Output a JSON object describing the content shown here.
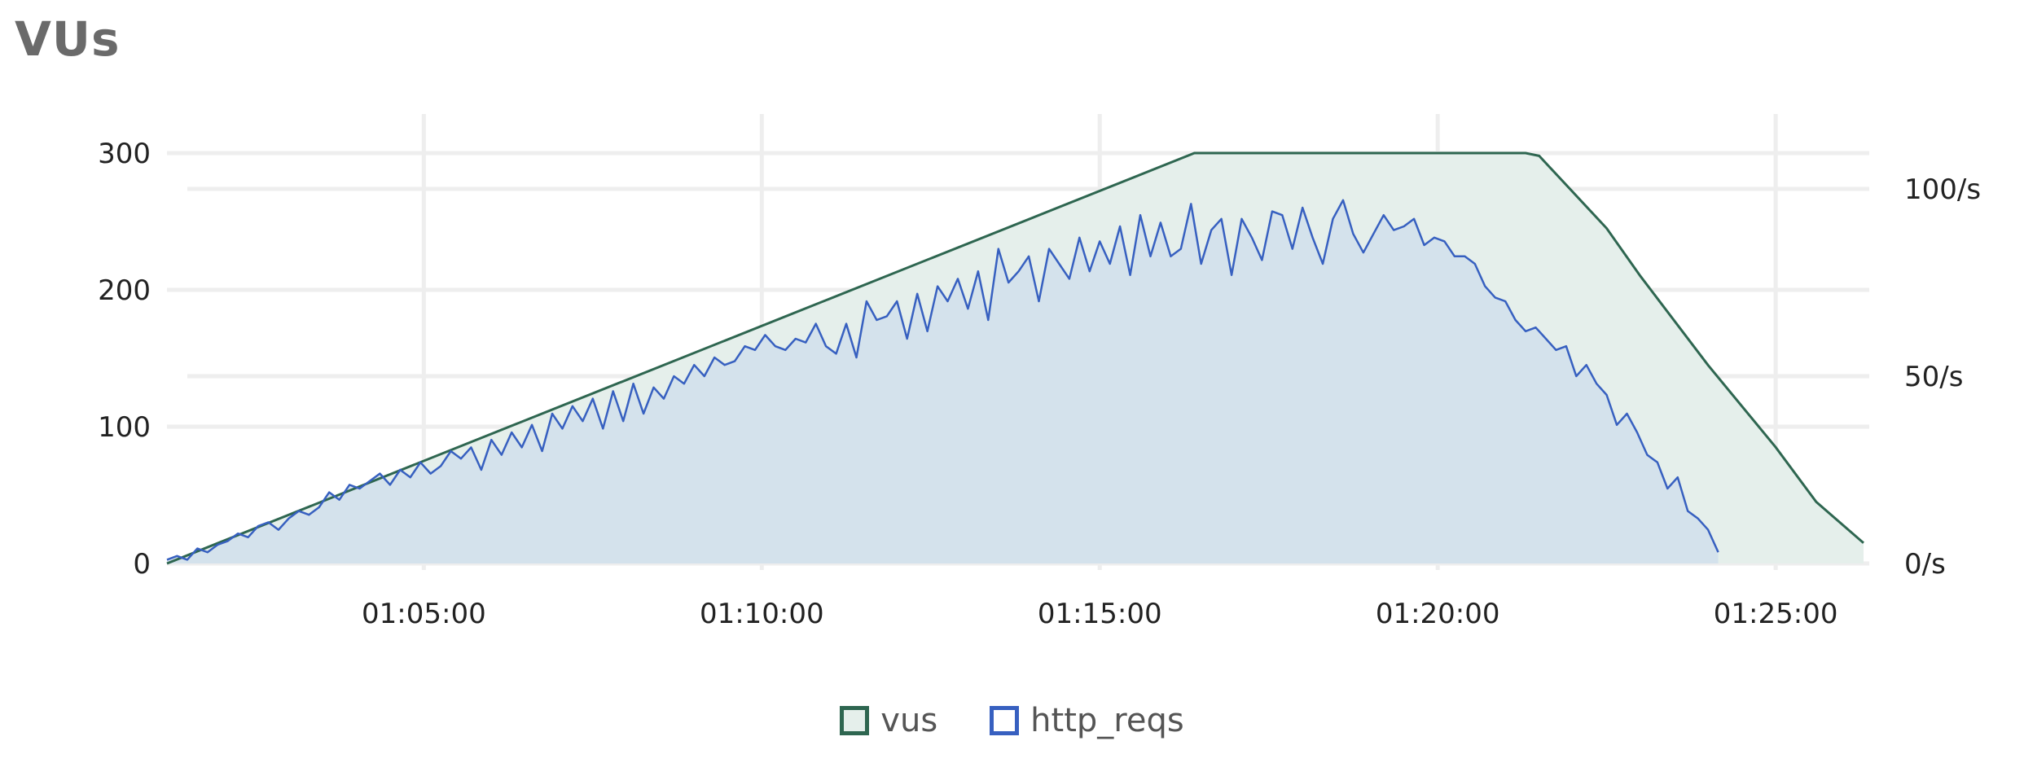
{
  "title": "VUs",
  "colors": {
    "vus_line": "#2e6650",
    "vus_fill": "#e5efeb",
    "http_line": "#3760c0",
    "http_fill": "#d2e1ec",
    "grid": "#eeeeee",
    "text": "#222222"
  },
  "chart_data": {
    "type": "area",
    "title": "VUs",
    "x_ticks": [
      "01:05:00",
      "01:10:00",
      "01:15:00",
      "01:20:00",
      "01:25:00"
    ],
    "xlim_minutes": [
      1.2,
      26.3
    ],
    "y_left": {
      "ticks": [
        "0",
        "100",
        "200",
        "300"
      ],
      "lim": [
        0,
        300
      ]
    },
    "y_right": {
      "ticks": [
        "0/s",
        "50/s",
        "100/s"
      ],
      "lim": [
        0,
        100
      ]
    },
    "grid": true,
    "legend_position": "bottom-center",
    "series": [
      {
        "name": "vus",
        "axis": "left",
        "points": [
          [
            1.2,
            0
          ],
          [
            16.4,
            300
          ],
          [
            21.3,
            300
          ],
          [
            21.5,
            298
          ],
          [
            22.5,
            245
          ],
          [
            23.0,
            210
          ],
          [
            24.0,
            145
          ],
          [
            25.0,
            85
          ],
          [
            25.6,
            45
          ],
          [
            26.3,
            15
          ]
        ]
      },
      {
        "name": "http_reqs",
        "axis": "right",
        "x_start": 1.2,
        "x_step": 0.15,
        "values": [
          1,
          2,
          1,
          4,
          3,
          5,
          6,
          8,
          7,
          10,
          11,
          9,
          12,
          14,
          13,
          15,
          19,
          17,
          21,
          20,
          22,
          24,
          21,
          25,
          23,
          27,
          24,
          26,
          30,
          28,
          31,
          25,
          33,
          29,
          35,
          31,
          37,
          30,
          40,
          36,
          42,
          38,
          44,
          36,
          46,
          38,
          48,
          40,
          47,
          44,
          50,
          48,
          53,
          50,
          55,
          53,
          54,
          58,
          57,
          61,
          58,
          57,
          60,
          59,
          64,
          58,
          56,
          64,
          55,
          70,
          65,
          66,
          70,
          60,
          72,
          62,
          74,
          70,
          76,
          68,
          78,
          65,
          84,
          75,
          78,
          82,
          70,
          84,
          80,
          76,
          87,
          78,
          86,
          80,
          90,
          77,
          93,
          82,
          91,
          82,
          84,
          96,
          80,
          89,
          92,
          77,
          92,
          87,
          81,
          94,
          93,
          84,
          95,
          87,
          80,
          92,
          97,
          88,
          83,
          88,
          93,
          89,
          90,
          92,
          85,
          87,
          86,
          82,
          82,
          80,
          74,
          71,
          70,
          65,
          62,
          63,
          60,
          57,
          58,
          50,
          53,
          48,
          45,
          37,
          40,
          35,
          29,
          27,
          20,
          23,
          14,
          12,
          9,
          3
        ]
      }
    ]
  }
}
